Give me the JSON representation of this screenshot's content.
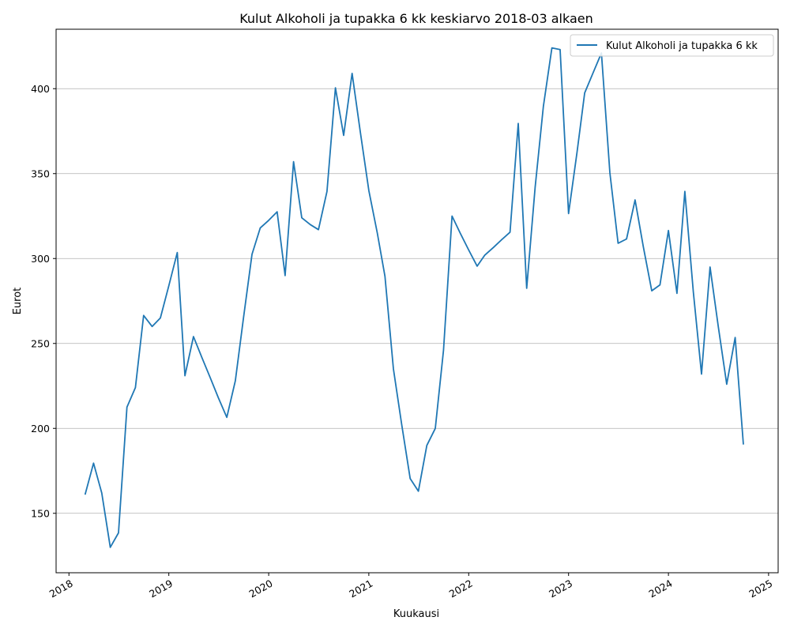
{
  "chart_data": {
    "type": "line",
    "title": "Kulut Alkoholi ja tupakka 6 kk keskiarvo 2018-03 alkaen",
    "xlabel": "Kuukausi",
    "ylabel": "Eurot",
    "xlim": [
      "2017-11-15",
      "2025-02-05"
    ],
    "ylim": [
      115,
      435
    ],
    "x_ticks": [
      "2018",
      "2019",
      "2020",
      "2021",
      "2022",
      "2023",
      "2024",
      "2025"
    ],
    "y_ticks": [
      150,
      200,
      250,
      300,
      350,
      400
    ],
    "grid": "horizontal",
    "legend": "top-right",
    "series": [
      {
        "name": "Kulut Alkoholi ja tupakka 6 kk",
        "color": "#1f77b4",
        "x": [
          "2018-03",
          "2018-04",
          "2018-05",
          "2018-06",
          "2018-07",
          "2018-08",
          "2018-09",
          "2018-10",
          "2018-11",
          "2018-12",
          "2019-01",
          "2019-02",
          "2019-03",
          "2019-04",
          "2019-05",
          "2019-06",
          "2019-07",
          "2019-08",
          "2019-09",
          "2019-10",
          "2019-11",
          "2019-12",
          "2020-01",
          "2020-02",
          "2020-03",
          "2020-04",
          "2020-05",
          "2020-06",
          "2020-07",
          "2020-08",
          "2020-09",
          "2020-10",
          "2020-11",
          "2020-12",
          "2021-01",
          "2021-02",
          "2021-03",
          "2021-04",
          "2021-05",
          "2021-06",
          "2021-07",
          "2021-08",
          "2021-09",
          "2021-10",
          "2021-11",
          "2021-12",
          "2022-01",
          "2022-02",
          "2022-03",
          "2022-04",
          "2022-05",
          "2022-06",
          "2022-07",
          "2022-08",
          "2022-09",
          "2022-10",
          "2022-11",
          "2022-12",
          "2023-01",
          "2023-02",
          "2023-03",
          "2023-04",
          "2023-05",
          "2023-06",
          "2023-07",
          "2023-08",
          "2023-09",
          "2023-10",
          "2023-11",
          "2023-12",
          "2024-01",
          "2024-02",
          "2024-03",
          "2024-04",
          "2024-05",
          "2024-06",
          "2024-07",
          "2024-08",
          "2024-09",
          "2024-10"
        ],
        "values": [
          161,
          179.5,
          162,
          130,
          138.5,
          212.5,
          224,
          266.5,
          260,
          265,
          284,
          303.5,
          231,
          254,
          242,
          230,
          218,
          206.5,
          228,
          265,
          302.5,
          318,
          322.5,
          327.5,
          290,
          357,
          324,
          320,
          317,
          339.5,
          400.5,
          372.5,
          409,
          374.5,
          340,
          315,
          289.5,
          235,
          202.5,
          170.5,
          163,
          190,
          200,
          246,
          325,
          315,
          305,
          295.5,
          302,
          306.5,
          311,
          315.5,
          379.5,
          282.5,
          342,
          389.5,
          424,
          423,
          326.5,
          362.5,
          397.5,
          409.5,
          421,
          350.5,
          309,
          311.5,
          334.5,
          307,
          281,
          284.5,
          316.5,
          279.5,
          339.5,
          280.5,
          232,
          295,
          260,
          226,
          253.5,
          190.5
        ]
      }
    ]
  }
}
